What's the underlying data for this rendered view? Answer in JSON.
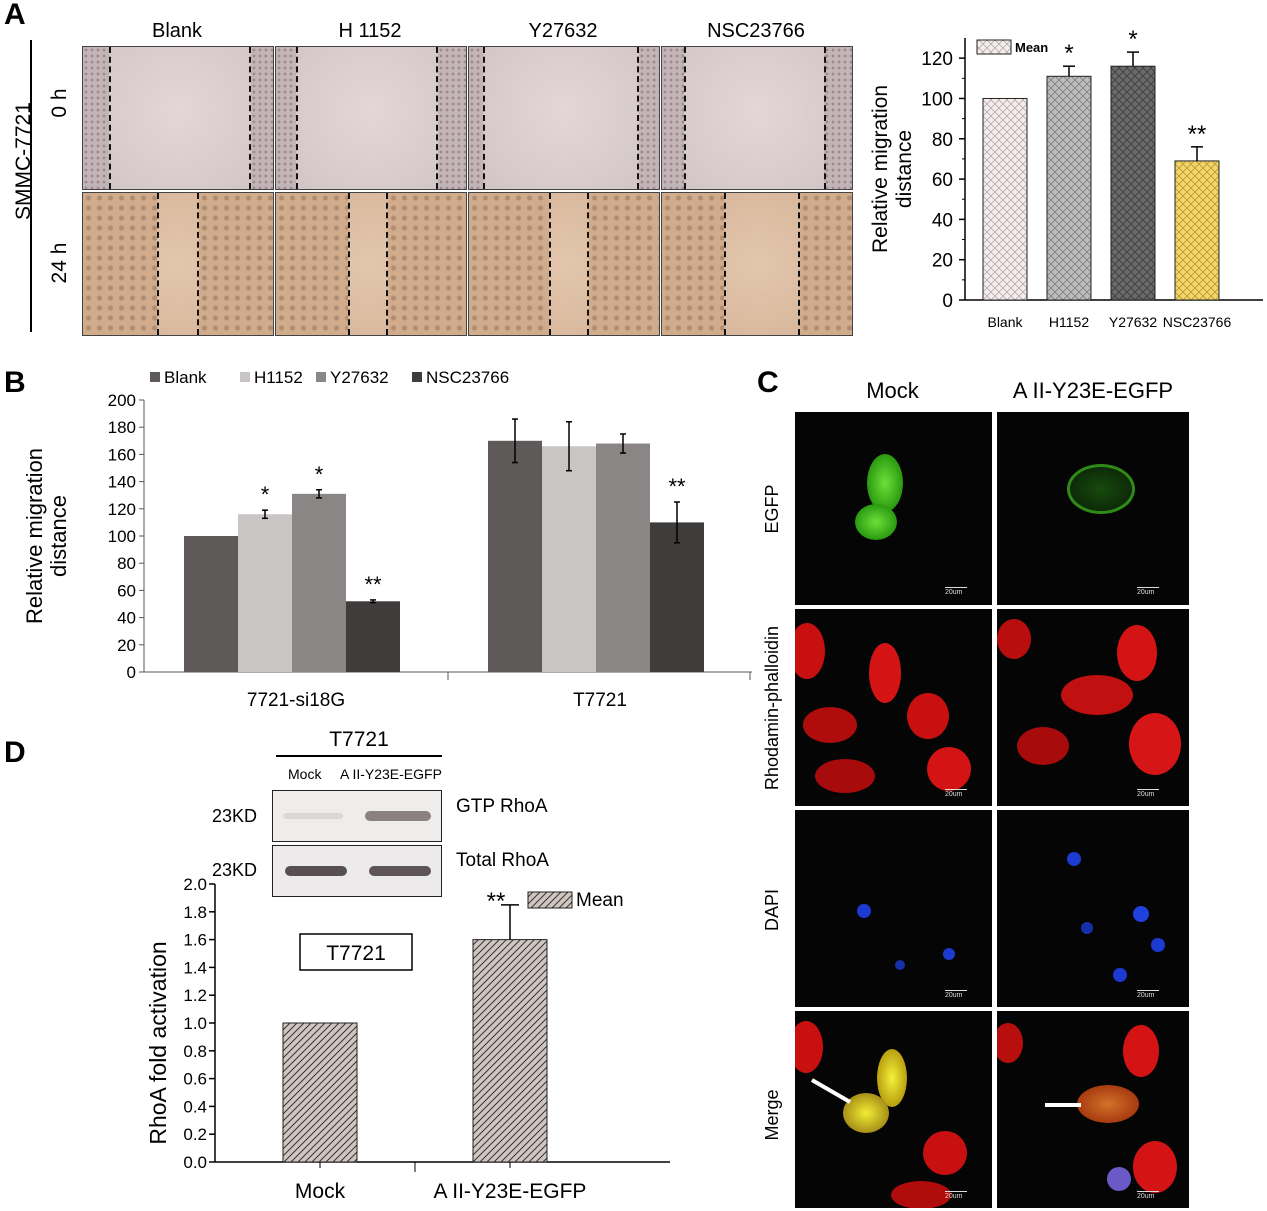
{
  "panel_labels": {
    "a": "A",
    "b": "B",
    "c": "C",
    "d": "D"
  },
  "panel_a": {
    "cell_line": "SMMC-7721",
    "time_labels": [
      "0 h",
      "24 h"
    ],
    "columns": [
      "Blank",
      "H 1152",
      "Y27632",
      "NSC23766"
    ]
  },
  "panel_c": {
    "columns": [
      "Mock",
      "A II-Y23E-EGFP"
    ],
    "rows": [
      "EGFP",
      "Rhodamin-phalloidin",
      "DAPI",
      "Merge"
    ],
    "scale_bar": "20um"
  },
  "panel_d_blot": {
    "title": "T7721",
    "lanes": [
      "Mock",
      "A II-Y23E-EGFP"
    ],
    "bands": [
      {
        "label": "GTP RhoA",
        "size": "23KD"
      },
      {
        "label": "Total RhoA",
        "size": "23KD"
      }
    ]
  },
  "colors": {
    "a_blank": "#f4eeee",
    "a_h1152": "#bdbdbd",
    "a_y27632": "#6a6a6a",
    "a_nsc": "#f3d56a",
    "b_blank": "#5e5a5a",
    "b_h1152": "#c9c5c5",
    "b_y27632": "#8a8686",
    "b_nsc": "#3f3c3c",
    "d_bar": "#cfc6c1",
    "egfp": "#3fbf1e",
    "rhod": "#d41414",
    "dapi": "#1c3bd0"
  },
  "chart_data": [
    {
      "id": "A",
      "type": "bar",
      "categories": [
        "Blank",
        "H1152",
        "Y27632",
        "NSC23766"
      ],
      "values": [
        100,
        111,
        116,
        69
      ],
      "errors": [
        0,
        5,
        7,
        7
      ],
      "significance": [
        "",
        "*",
        "*",
        "**"
      ],
      "ylabel": "Relative migration distance",
      "ylim": [
        0,
        130
      ],
      "yticks": [
        0,
        20,
        40,
        60,
        80,
        100,
        120
      ],
      "legend": [
        "Mean"
      ],
      "legend_position": "top-left"
    },
    {
      "id": "B",
      "type": "bar",
      "categories": [
        "7721-si18G",
        "T7721"
      ],
      "series": [
        {
          "name": "Blank",
          "values": [
            100,
            170
          ],
          "errors": [
            0,
            16
          ]
        },
        {
          "name": "H1152",
          "values": [
            116,
            166
          ],
          "errors": [
            3,
            18
          ]
        },
        {
          "name": "Y27632",
          "values": [
            131,
            168
          ],
          "errors": [
            3,
            7
          ]
        },
        {
          "name": "NSC23766",
          "values": [
            52,
            110
          ],
          "errors": [
            1,
            15
          ]
        }
      ],
      "significance": [
        [
          "",
          "*",
          "*",
          "**"
        ],
        [
          "",
          "",
          "",
          "**"
        ]
      ],
      "ylabel": "Relative migration distance",
      "ylim": [
        0,
        200
      ],
      "yticks": [
        0,
        20,
        40,
        60,
        80,
        100,
        120,
        140,
        160,
        180,
        200
      ],
      "legend_position": "top"
    },
    {
      "id": "D",
      "type": "bar",
      "categories": [
        "Mock",
        "A II-Y23E-EGFP"
      ],
      "values": [
        1.0,
        1.6
      ],
      "errors": [
        0,
        0.25
      ],
      "significance": [
        "",
        "**"
      ],
      "ylabel": "RhoA fold activation",
      "ylim": [
        0,
        2.0
      ],
      "yticks": [
        "0.0",
        "0.2",
        "0.4",
        "0.6",
        "0.8",
        "1.0",
        "1.2",
        "1.4",
        "1.6",
        "1.8",
        "2.0"
      ],
      "legend": [
        "Mean"
      ],
      "annotation": "T7721"
    }
  ]
}
